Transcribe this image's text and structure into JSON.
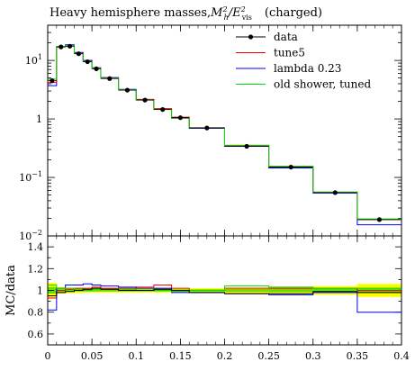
{
  "title_prefix": "Heavy hemisphere masses, ",
  "title_suffix": " (charged)",
  "chart_data": [
    {
      "type": "line",
      "panel": "main",
      "title": "Heavy hemisphere masses, M_h^2/E_vis^2 (charged)",
      "xlabel": "",
      "ylabel": "",
      "yscale": "log",
      "xlim": [
        0,
        0.4
      ],
      "ylim": [
        0.01,
        40
      ],
      "xticks": [
        0,
        0.05,
        0.1,
        0.15,
        0.2,
        0.25,
        0.3,
        0.35,
        0.4
      ],
      "xtick_labels": [
        "0",
        "0.05",
        "0.1",
        "0.15",
        "0.2",
        "0.25",
        "0.3",
        "0.35",
        "0.4"
      ],
      "ytick_labels": [
        {
          "value": 10,
          "base": "10",
          "exp": "1"
        },
        {
          "value": 1,
          "base": "1",
          "exp": ""
        },
        {
          "value": 0.1,
          "base": "10",
          "exp": "−1"
        },
        {
          "value": 0.01,
          "base": "10",
          "exp": "−2"
        }
      ],
      "legend_position": "top-right",
      "bin_edges": [
        0,
        0.01,
        0.02,
        0.03,
        0.04,
        0.05,
        0.06,
        0.08,
        0.1,
        0.12,
        0.14,
        0.16,
        0.2,
        0.25,
        0.3,
        0.35,
        0.4
      ],
      "series": [
        {
          "name": "data",
          "style": "points",
          "color": "#000000",
          "x": [
            0.005,
            0.015,
            0.025,
            0.035,
            0.045,
            0.055,
            0.07,
            0.09,
            0.11,
            0.13,
            0.15,
            0.18,
            0.225,
            0.275,
            0.325,
            0.375
          ],
          "values": [
            4.5,
            17.0,
            17.5,
            13.0,
            9.5,
            7.2,
            4.9,
            3.1,
            2.1,
            1.45,
            1.05,
            0.7,
            0.34,
            0.15,
            0.055,
            0.019
          ]
        },
        {
          "name": "tune5",
          "style": "step",
          "color": "#ff0000",
          "values": [
            4.2,
            17.0,
            17.6,
            13.2,
            9.6,
            7.4,
            5.0,
            3.15,
            2.15,
            1.5,
            1.07,
            0.71,
            0.35,
            0.153,
            0.056,
            0.019
          ]
        },
        {
          "name": "lambda 0.23",
          "style": "step",
          "color": "#0000ff",
          "values": [
            3.7,
            17.3,
            18.5,
            13.7,
            10.0,
            7.5,
            5.1,
            3.2,
            2.16,
            1.47,
            1.03,
            0.69,
            0.34,
            0.145,
            0.054,
            0.0155
          ]
        },
        {
          "name": "old shower, tuned",
          "style": "step",
          "color": "#00dd00",
          "values": [
            4.8,
            17.4,
            17.9,
            13.1,
            9.5,
            7.3,
            4.95,
            3.15,
            2.1,
            1.45,
            1.04,
            0.7,
            0.355,
            0.155,
            0.056,
            0.0195
          ]
        }
      ]
    },
    {
      "type": "line",
      "panel": "ratio",
      "ylabel": "MC/data",
      "xlim": [
        0,
        0.4
      ],
      "ylim": [
        0.5,
        1.5
      ],
      "yticks": [
        0.6,
        0.8,
        1,
        1.2,
        1.4
      ],
      "ytick_labels": [
        "0.6",
        "0.8",
        "1",
        "1.2",
        "1.4"
      ],
      "xticks": [
        0,
        0.05,
        0.1,
        0.15,
        0.2,
        0.25,
        0.3,
        0.35,
        0.4
      ],
      "xtick_labels": [
        "0",
        "0.05",
        "0.1",
        "0.15",
        "0.2",
        "0.25",
        "0.3",
        "0.35",
        "0.4"
      ],
      "bin_edges": [
        0,
        0.01,
        0.02,
        0.03,
        0.04,
        0.05,
        0.06,
        0.08,
        0.1,
        0.12,
        0.14,
        0.16,
        0.2,
        0.25,
        0.3,
        0.35,
        0.4
      ],
      "band_colors": [
        "#ffff00",
        "#66dd00"
      ],
      "band_outer": [
        0.07,
        0.03,
        0.025,
        0.025,
        0.02,
        0.02,
        0.02,
        0.02,
        0.02,
        0.02,
        0.02,
        0.02,
        0.025,
        0.03,
        0.04,
        0.06
      ],
      "band_inner": [
        0.03,
        0.015,
        0.01,
        0.01,
        0.01,
        0.01,
        0.01,
        0.01,
        0.01,
        0.01,
        0.01,
        0.01,
        0.012,
        0.015,
        0.02,
        0.025
      ],
      "series": [
        {
          "name": "tune5",
          "color": "#ff0000",
          "values": [
            0.93,
            1.0,
            1.01,
            1.02,
            1.02,
            1.03,
            1.02,
            1.02,
            1.03,
            1.05,
            1.02,
            1.0,
            1.02,
            1.02,
            1.02,
            1.0
          ]
        },
        {
          "name": "lambda 0.23",
          "color": "#0000ff",
          "values": [
            0.82,
            1.02,
            1.05,
            1.05,
            1.06,
            1.05,
            1.04,
            1.03,
            1.02,
            1.02,
            0.98,
            0.98,
            0.97,
            0.96,
            0.98,
            0.8
          ]
        },
        {
          "name": "old shower, tuned",
          "color": "#00dd00",
          "values": [
            1.05,
            1.02,
            1.02,
            1.01,
            1.0,
            1.01,
            1.01,
            1.01,
            1.0,
            1.0,
            0.99,
            1.0,
            1.04,
            1.03,
            1.02,
            1.02
          ]
        },
        {
          "name": "old shower, tuned (lower)",
          "color": "#000000",
          "values": [
            0.95,
            0.98,
            0.99,
            1.0,
            1.01,
            1.02,
            1.01,
            1.0,
            1.0,
            1.01,
            1.0,
            0.98,
            0.97,
            0.97,
            0.99,
            0.98
          ]
        }
      ]
    }
  ]
}
